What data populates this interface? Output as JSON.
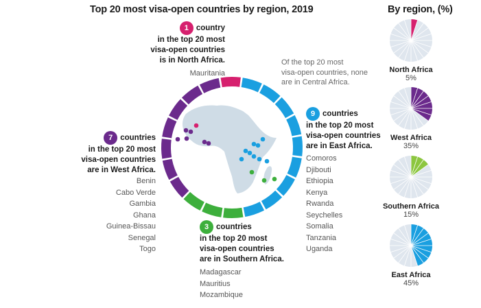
{
  "chart_data": [
    {
      "type": "donut",
      "title": "Top 20 most visa-open countries by region, 2019",
      "total_segments": 20,
      "series": [
        {
          "name": "North Africa",
          "count": 1,
          "color": "#d6206e"
        },
        {
          "name": "East Africa",
          "count": 9,
          "color": "#1a9fe0"
        },
        {
          "name": "Southern Africa",
          "count": 3,
          "color": "#3daf3c"
        },
        {
          "name": "West Africa",
          "count": 7,
          "color": "#6b2a8c"
        }
      ]
    },
    {
      "type": "pie",
      "title": "By region, (%)",
      "series": [
        {
          "name": "North Africa",
          "value": 5,
          "label": "5%",
          "color": "#d6206e"
        },
        {
          "name": "West Africa",
          "value": 35,
          "label": "35%",
          "color": "#6b2a8c"
        },
        {
          "name": "Southern Africa",
          "value": 15,
          "label": "15%",
          "color": "#8cc63f"
        },
        {
          "name": "East Africa",
          "value": 45,
          "label": "45%",
          "color": "#1a9fe0"
        }
      ]
    }
  ],
  "callouts": {
    "north": {
      "count": "1",
      "lines": [
        "country",
        "in the top 20 most",
        "visa-open countries",
        "is in North Africa."
      ],
      "countries": [
        "Mauritania"
      ]
    },
    "central": {
      "lines": [
        "Of the top 20 most",
        "visa-open countries, none",
        "are in Central Africa."
      ]
    },
    "east": {
      "count": "9",
      "lines": [
        "countries",
        "in the top 20 most",
        "visa-open countries",
        "are in East Africa."
      ],
      "countries": [
        "Comoros",
        "Djibouti",
        "Ethiopia",
        "Kenya",
        "Rwanda",
        "Seychelles",
        "Somalia",
        "Tanzania",
        "Uganda"
      ]
    },
    "west": {
      "count": "7",
      "lines": [
        "countries",
        "in the top 20 most",
        "visa-open countries",
        "are in West Africa."
      ],
      "countries": [
        "Benin",
        "Cabo Verde",
        "Gambia",
        "Ghana",
        "Guinea-Bissau",
        "Senegal",
        "Togo"
      ]
    },
    "south": {
      "count": "3",
      "lines": [
        "countries",
        "in the top 20 most",
        "visa-open countries",
        "are in Southern Africa."
      ],
      "countries": [
        "Madagascar",
        "Mauritius",
        "Mozambique"
      ]
    }
  },
  "colors": {
    "map": "#cfdce6",
    "pie_bg": "#dfe6ee",
    "pie_line": "#ffffff"
  }
}
